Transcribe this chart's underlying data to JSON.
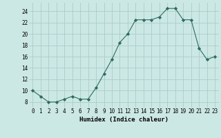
{
  "x": [
    0,
    1,
    2,
    3,
    4,
    5,
    6,
    7,
    8,
    9,
    10,
    11,
    12,
    13,
    14,
    15,
    16,
    17,
    18,
    19,
    20,
    21,
    22,
    23
  ],
  "y": [
    10,
    9,
    8,
    8,
    8.5,
    9,
    8.5,
    8.5,
    10.5,
    13,
    15.5,
    18.5,
    20,
    22.5,
    22.5,
    22.5,
    23,
    24.5,
    24.5,
    22.5,
    22.5,
    17.5,
    15.5,
    16
  ],
  "line_color": "#2d6b5e",
  "marker": "D",
  "marker_size": 2.2,
  "background_color": "#cce8e4",
  "grid_color": "#aaccca",
  "xlabel": "Humidex (Indice chaleur)",
  "ylim": [
    7,
    25.5
  ],
  "xlim": [
    -0.5,
    23.5
  ],
  "yticks": [
    8,
    10,
    12,
    14,
    16,
    18,
    20,
    22,
    24
  ],
  "xtick_labels": [
    "0",
    "1",
    "2",
    "3",
    "4",
    "5",
    "6",
    "7",
    "8",
    "9",
    "10",
    "11",
    "12",
    "13",
    "14",
    "15",
    "16",
    "17",
    "18",
    "19",
    "20",
    "21",
    "22",
    "23"
  ],
  "label_fontsize": 6.5,
  "tick_fontsize": 5.5
}
